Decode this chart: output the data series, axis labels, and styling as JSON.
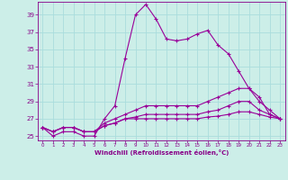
{
  "xlabel": "Windchill (Refroidissement éolien,°C)",
  "background_color": "#cceee8",
  "grid_color": "#aadddd",
  "line_color": "#990099",
  "hours": [
    0,
    1,
    2,
    3,
    4,
    5,
    6,
    7,
    8,
    9,
    10,
    11,
    12,
    13,
    14,
    15,
    16,
    17,
    18,
    19,
    20,
    21,
    22,
    23
  ],
  "series": [
    [
      26.0,
      25.0,
      25.5,
      25.5,
      25.0,
      25.0,
      27.0,
      28.5,
      34.0,
      39.0,
      40.2,
      38.5,
      36.2,
      36.0,
      36.2,
      36.8,
      37.2,
      35.5,
      34.5,
      32.5,
      30.5,
      29.5,
      27.5,
      27.0
    ],
    [
      26.0,
      25.5,
      26.0,
      26.0,
      25.5,
      25.5,
      26.5,
      27.0,
      27.5,
      28.0,
      28.5,
      28.5,
      28.5,
      28.5,
      28.5,
      28.5,
      29.0,
      29.5,
      30.0,
      30.5,
      30.5,
      29.0,
      28.0,
      27.0
    ],
    [
      26.0,
      25.5,
      26.0,
      26.0,
      25.5,
      25.5,
      26.2,
      26.5,
      27.0,
      27.2,
      27.5,
      27.5,
      27.5,
      27.5,
      27.5,
      27.5,
      27.8,
      28.0,
      28.5,
      29.0,
      29.0,
      28.0,
      27.5,
      27.0
    ],
    [
      26.0,
      25.5,
      26.0,
      26.0,
      25.5,
      25.5,
      26.2,
      26.5,
      27.0,
      27.0,
      27.0,
      27.0,
      27.0,
      27.0,
      27.0,
      27.0,
      27.2,
      27.3,
      27.5,
      27.8,
      27.8,
      27.5,
      27.2,
      27.0
    ]
  ],
  "ylim": [
    24.5,
    40.5
  ],
  "yticks": [
    25,
    27,
    29,
    31,
    33,
    35,
    37,
    39
  ],
  "xlim": [
    -0.5,
    23.5
  ],
  "xticks": [
    0,
    1,
    2,
    3,
    4,
    5,
    6,
    7,
    8,
    9,
    10,
    11,
    12,
    13,
    14,
    15,
    16,
    17,
    18,
    19,
    20,
    21,
    22,
    23
  ]
}
